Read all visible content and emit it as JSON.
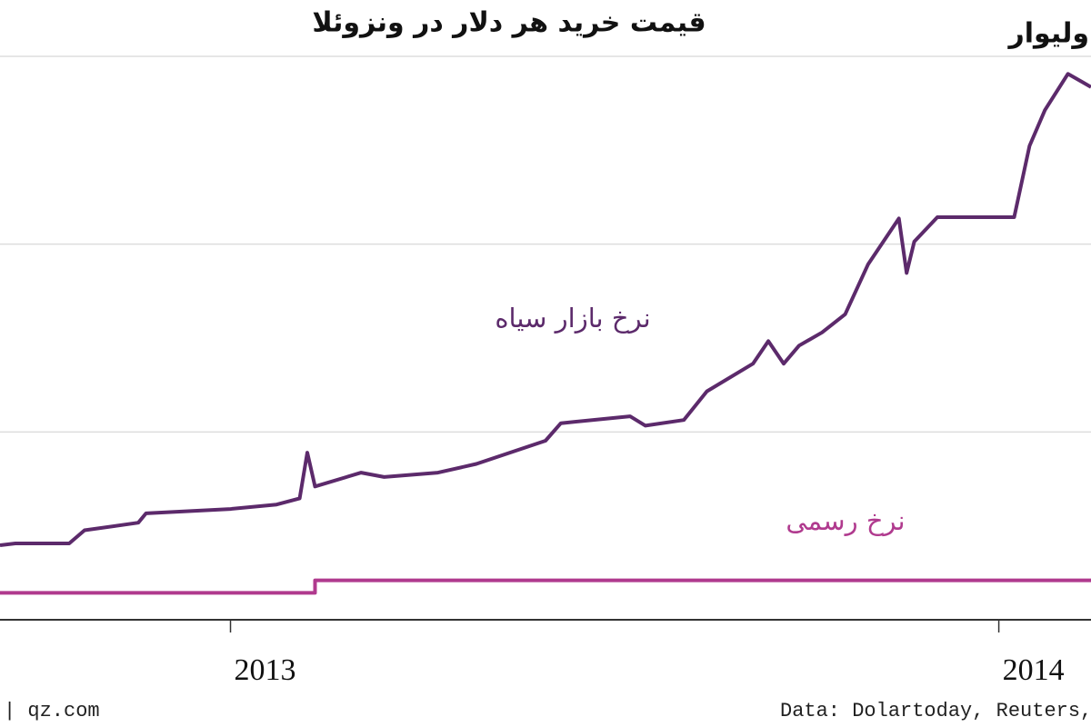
{
  "chart_data": {
    "type": "line",
    "title": "قیمت خرید هر دلار در ونزوئلا",
    "subtitle": "ولیوار",
    "source_left": "| qz.com",
    "source_right": "Data: Dolartoday, Reuters, I",
    "xlim": [
      2012.7,
      2014.12
    ],
    "xticks": [
      2013,
      2014
    ],
    "ylim": [
      0,
      90
    ],
    "yticks": [
      0,
      30,
      60,
      90
    ],
    "grid": true,
    "series": [
      {
        "name": "نرخ بازار سیاه",
        "color": "#5c2a6b",
        "x": [
          2012.7,
          2012.72,
          2012.79,
          2012.81,
          2012.88,
          2012.89,
          2013.0,
          2013.06,
          2013.09,
          2013.1,
          2013.11,
          2013.17,
          2013.2,
          2013.27,
          2013.32,
          2013.41,
          2013.43,
          2013.52,
          2013.54,
          2013.59,
          2013.62,
          2013.68,
          2013.7,
          2013.72,
          2013.74,
          2013.77,
          2013.8,
          2013.83,
          2013.87,
          2013.88,
          2013.89,
          2013.92,
          2014.02,
          2014.04,
          2014.06,
          2014.09,
          2014.11,
          2014.12
        ],
        "values": [
          11.9,
          12.2,
          12.2,
          14.3,
          15.5,
          17.0,
          17.7,
          18.4,
          19.4,
          26.7,
          21.3,
          23.5,
          22.8,
          23.5,
          24.9,
          28.6,
          31.4,
          32.5,
          31.0,
          31.9,
          36.5,
          40.9,
          44.5,
          40.9,
          43.8,
          45.9,
          48.8,
          56.8,
          64.1,
          55.4,
          60.4,
          64.3,
          64.3,
          75.7,
          81.4,
          87.2,
          85.8,
          85.1
        ]
      },
      {
        "name": "نرخ رسمی",
        "color": "#b03a8e",
        "x": [
          2012.7,
          2013.11,
          2013.11,
          2014.12
        ],
        "values": [
          4.3,
          4.3,
          6.3,
          6.3
        ]
      }
    ]
  }
}
